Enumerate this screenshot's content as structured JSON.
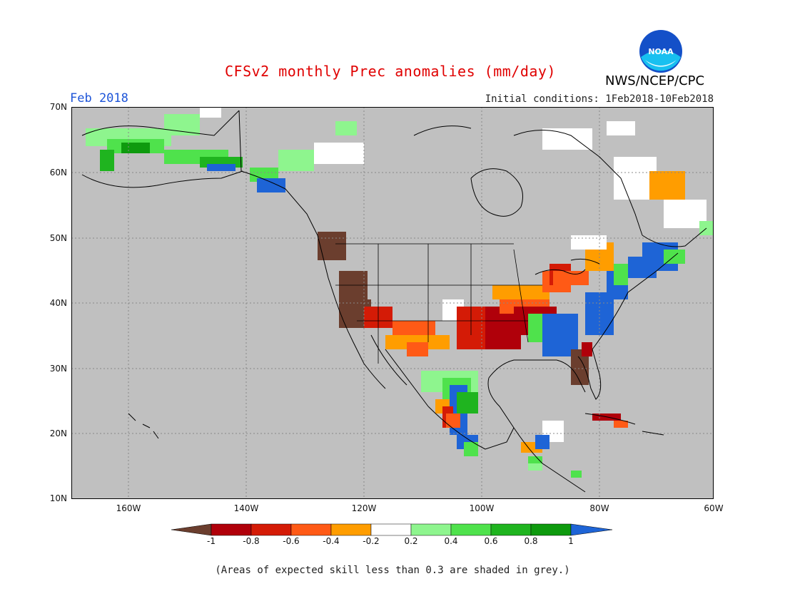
{
  "header": {
    "title": "CFSv2 monthly Prec anomalies (mm/day)",
    "agency": "NWS/NCEP/CPC",
    "month": "Feb 2018",
    "initial_conditions": "Initial conditions: 1Feb2018-10Feb2018",
    "logo_text": "NOAA"
  },
  "map": {
    "background_color": "#c0c0c0",
    "lat_labels": [
      "70N",
      "60N",
      "50N",
      "40N",
      "30N",
      "20N",
      "10N"
    ],
    "lon_labels": [
      "160W",
      "140W",
      "120W",
      "100W",
      "80W",
      "60W"
    ]
  },
  "colorbar": {
    "labels": [
      "-1",
      "-0.8",
      "-0.6",
      "-0.4",
      "-0.2",
      "0.2",
      "0.4",
      "0.6",
      "0.8",
      "1"
    ],
    "colors": [
      "#6b3e2e",
      "#b0000a",
      "#d41b06",
      "#ff5a16",
      "#ff9d00",
      "#ffffff",
      "#8ef58e",
      "#4fe24c",
      "#1fb41f",
      "#0e9a0e",
      "#1e64d6"
    ]
  },
  "footnote": "(Areas of expected skill less than 0.3 are shaded in grey.)"
}
